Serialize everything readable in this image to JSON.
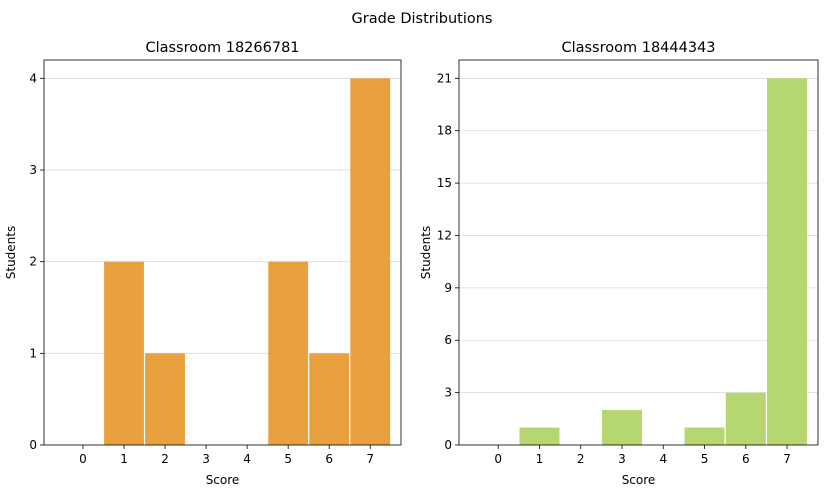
{
  "suptitle": "Grade Distributions",
  "chart_data": [
    {
      "type": "bar",
      "title": "Classroom 18266781",
      "xlabel": "Score",
      "ylabel": "Students",
      "categories": [
        "0",
        "1",
        "2",
        "3",
        "4",
        "5",
        "6",
        "7"
      ],
      "values": [
        0,
        2,
        1,
        0,
        0,
        2,
        1,
        4
      ],
      "ylim": [
        0,
        4.2
      ],
      "yticks": [
        0,
        1,
        2,
        3,
        4
      ],
      "grid": "horizontal",
      "color": "#e9a13f"
    },
    {
      "type": "bar",
      "title": "Classroom 18444343",
      "xlabel": "Score",
      "ylabel": "Students",
      "categories": [
        "0",
        "1",
        "2",
        "3",
        "4",
        "5",
        "6",
        "7"
      ],
      "values": [
        0,
        1,
        0,
        2,
        0,
        1,
        3,
        21
      ],
      "ylim": [
        0,
        22.05
      ],
      "yticks": [
        0,
        3,
        6,
        9,
        12,
        15,
        18,
        21
      ],
      "grid": "horizontal",
      "color": "#b5d671"
    }
  ]
}
